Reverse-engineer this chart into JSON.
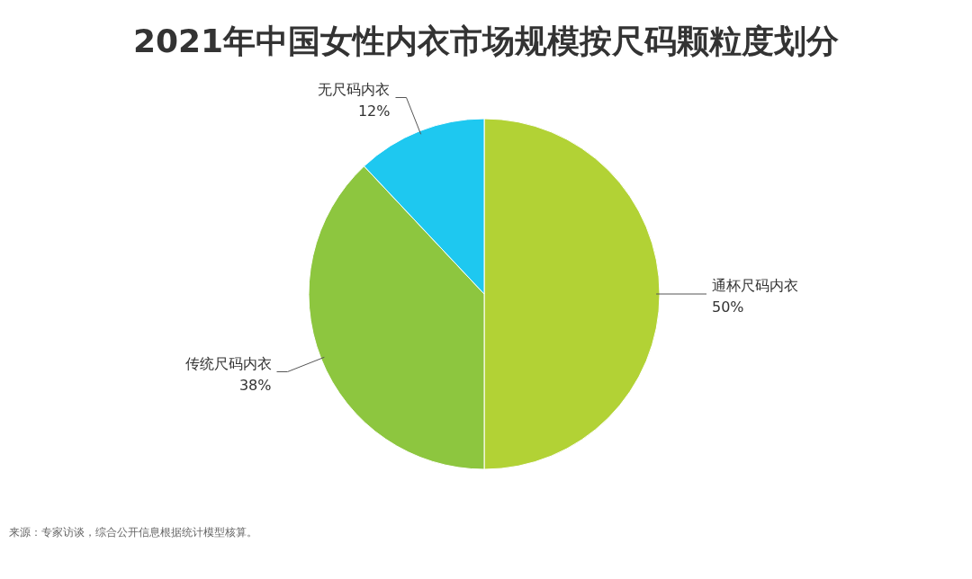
{
  "chart_data": {
    "type": "pie",
    "title": "2021年中国女性内衣市场规模按尺码颗粒度划分",
    "categories": [
      "通杯尺码内衣",
      "传统尺码内衣",
      "无尺码内衣"
    ],
    "values": [
      50,
      38,
      12
    ],
    "colors": [
      "#b2d235",
      "#8dc63f",
      "#1ec8f0"
    ],
    "value_labels": [
      "50%",
      "38%",
      "12%"
    ],
    "annotations": [
      "来源：专家访谈，综合公开信息根据统计模型核算。"
    ]
  }
}
